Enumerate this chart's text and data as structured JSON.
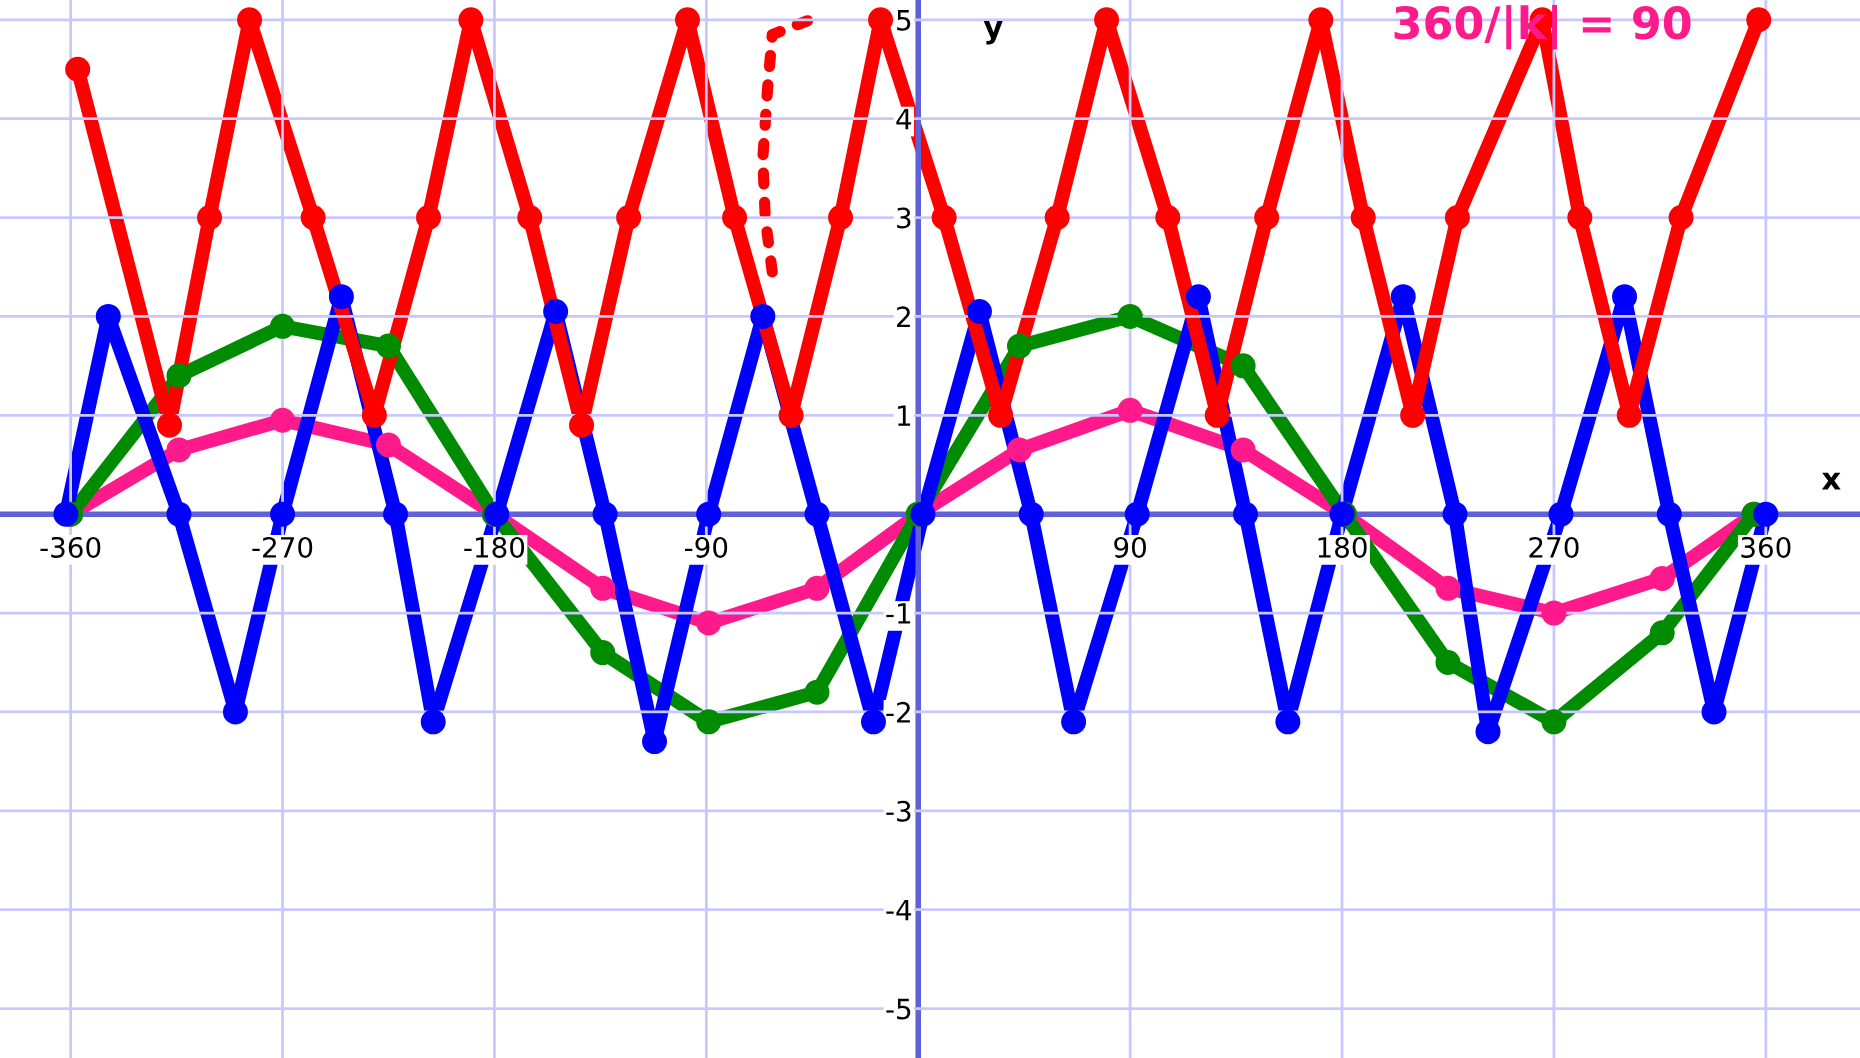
{
  "chart_data": {
    "type": "line",
    "xlabel": "x",
    "ylabel": "y",
    "xlim": [
      -390,
      400
    ],
    "ylim": [
      -5.5,
      5.2
    ],
    "xticks": [
      -360,
      -270,
      -180,
      -90,
      90,
      180,
      270,
      360
    ],
    "yticks": [
      -5,
      -4,
      -3,
      -2,
      -1,
      1,
      2,
      3,
      4,
      5
    ],
    "grid": true,
    "marker": "circle",
    "line_style": "solid",
    "annotations": [
      {
        "text": "360/|k| = 90",
        "x": 265,
        "y": 5.15
      }
    ],
    "series": [
      {
        "color": "#ff1a8c",
        "x": [
          -360,
          -314,
          -270,
          -225,
          -180,
          -134,
          -89,
          -43,
          0,
          43,
          90,
          138,
          181,
          225,
          270,
          316,
          355
        ],
        "values": [
          0,
          0.65,
          0.95,
          0.7,
          0,
          -0.75,
          -1.1,
          -0.75,
          0,
          0.65,
          1.05,
          0.65,
          0,
          -0.75,
          -1.0,
          -0.65,
          0
        ]
      },
      {
        "color": "#008c00",
        "x": [
          -360,
          -314,
          -270,
          -225,
          -180,
          -134,
          -89,
          -43,
          0,
          43,
          90,
          138,
          181,
          225,
          270,
          316,
          355
        ],
        "values": [
          0,
          1.4,
          1.9,
          1.7,
          0,
          -1.4,
          -2.1,
          -1.8,
          0,
          1.7,
          2.0,
          1.5,
          0,
          -1.5,
          -2.1,
          -1.2,
          0
        ]
      },
      {
        "color": "#0000ff",
        "x": [
          -362,
          -344,
          -314,
          -290,
          -270,
          -245,
          -222,
          -206,
          -179,
          -154,
          -133,
          -112,
          -89,
          -66,
          -43,
          -19,
          2,
          26,
          48,
          66,
          93,
          119,
          139,
          157,
          180,
          206,
          228,
          242,
          273,
          300,
          319,
          338,
          360
        ],
        "values": [
          0,
          2.0,
          0,
          -2.0,
          0,
          2.2,
          0,
          -2.1,
          0,
          2.05,
          0,
          -2.3,
          0,
          2.0,
          0,
          -2.1,
          0,
          2.05,
          0,
          -2.1,
          0,
          2.2,
          0,
          -2.1,
          0,
          2.2,
          0,
          -2.2,
          0,
          2.2,
          0,
          -2.0,
          0
        ]
      },
      {
        "color": "#ff0000",
        "x": [
          -357,
          -318,
          -301,
          -284,
          -257,
          -231,
          -208,
          -190,
          -165,
          -143,
          -123,
          -98,
          -78,
          -54,
          -33,
          -16,
          11,
          35,
          59,
          80,
          106,
          127,
          148,
          171,
          189,
          210,
          229,
          265,
          281,
          302,
          324,
          357
        ],
        "values": [
          4.5,
          0.9,
          3,
          5,
          3,
          1,
          3,
          5,
          3,
          0.9,
          3,
          5,
          3,
          1,
          3,
          5,
          3,
          1,
          3,
          5,
          3,
          1,
          3,
          5,
          3,
          1,
          3,
          5,
          3,
          1,
          3,
          5
        ]
      },
      {
        "color": "#ff0000",
        "line_style": "dotted",
        "marker": "none",
        "x": [
          -62,
          -65,
          -66,
          -64,
          -62,
          -46
        ],
        "values": [
          2.45,
          3,
          3.6,
          4.3,
          4.85,
          5
        ]
      }
    ]
  }
}
